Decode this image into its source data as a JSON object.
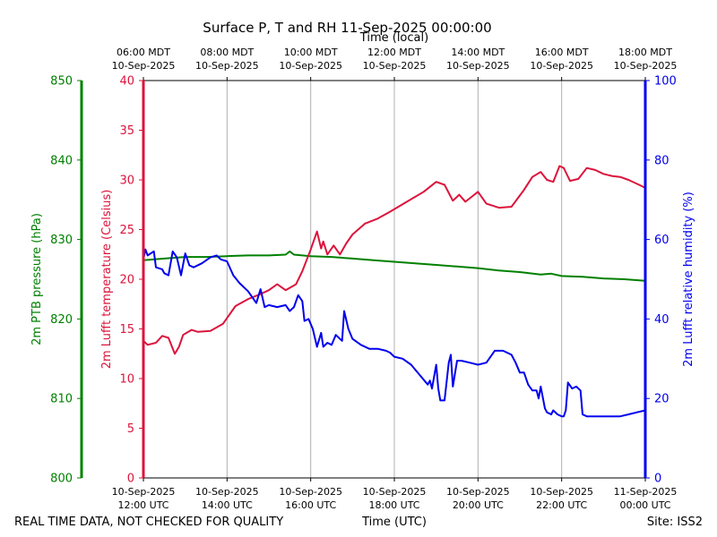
{
  "footer": {
    "quality_note": "REAL TIME DATA, NOT CHECKED FOR QUALITY",
    "site": "Site: ISS2"
  },
  "colors": {
    "pressure": "#008000",
    "temperature": "#dc143c",
    "humidity": "#0000ee",
    "grid": "#b0b0b0"
  },
  "chart_data": {
    "type": "line",
    "title": "Surface P, T and RH 11-Sep-2025 00:00:00",
    "xlabel": "Time (UTC)",
    "x2label": "Time (local)",
    "xlim": [
      12,
      24
    ],
    "x_unit": "hours UTC, 10-Sep-2025",
    "grid": "vertical",
    "x_ticks": [
      {
        "x": 12,
        "utc": [
          "10-Sep-2025",
          "12:00 UTC"
        ],
        "local": [
          "06:00 MDT",
          "10-Sep-2025"
        ]
      },
      {
        "x": 14,
        "utc": [
          "10-Sep-2025",
          "14:00 UTC"
        ],
        "local": [
          "08:00 MDT",
          "10-Sep-2025"
        ]
      },
      {
        "x": 16,
        "utc": [
          "10-Sep-2025",
          "16:00 UTC"
        ],
        "local": [
          "10:00 MDT",
          "10-Sep-2025"
        ]
      },
      {
        "x": 18,
        "utc": [
          "10-Sep-2025",
          "18:00 UTC"
        ],
        "local": [
          "12:00 MDT",
          "10-Sep-2025"
        ]
      },
      {
        "x": 20,
        "utc": [
          "10-Sep-2025",
          "20:00 UTC"
        ],
        "local": [
          "14:00 MDT",
          "10-Sep-2025"
        ]
      },
      {
        "x": 22,
        "utc": [
          "10-Sep-2025",
          "22:00 UTC"
        ],
        "local": [
          "16:00 MDT",
          "10-Sep-2025"
        ]
      },
      {
        "x": 24,
        "utc": [
          "11-Sep-2025",
          "00:00 UTC"
        ],
        "local": [
          "18:00 MDT",
          "10-Sep-2025"
        ]
      }
    ],
    "axes": {
      "pressure": {
        "label": "2m PTB pressure (hPa)",
        "ylim": [
          800,
          850
        ],
        "ticks": [
          800,
          810,
          820,
          830,
          840,
          850
        ]
      },
      "temperature": {
        "label": "2m Lufft temperature (Celsius)",
        "ylim": [
          0,
          40
        ],
        "ticks": [
          0,
          5,
          10,
          15,
          20,
          25,
          30,
          35,
          40
        ]
      },
      "humidity": {
        "label": "2m Lufft relative humidity (%)",
        "ylim": [
          0,
          100
        ],
        "ticks": [
          0,
          20,
          40,
          60,
          80,
          100
        ]
      }
    },
    "series": [
      {
        "key": "pressure",
        "x": [
          12.0,
          12.5,
          13.0,
          13.5,
          14.0,
          14.5,
          15.0,
          15.4,
          15.5,
          15.6,
          16.0,
          16.5,
          17.0,
          17.5,
          18.0,
          18.5,
          19.0,
          19.5,
          20.0,
          20.5,
          21.0,
          21.5,
          21.75,
          22.0,
          22.5,
          23.0,
          23.5,
          24.0
        ],
        "y": [
          827.4,
          827.6,
          827.8,
          827.8,
          827.9,
          828.0,
          828.0,
          828.1,
          828.5,
          828.1,
          827.9,
          827.8,
          827.6,
          827.4,
          827.2,
          827.0,
          826.8,
          826.6,
          826.4,
          826.1,
          825.9,
          825.6,
          825.7,
          825.4,
          825.3,
          825.1,
          825.0,
          824.8
        ]
      },
      {
        "key": "temperature",
        "x": [
          12.0,
          12.1,
          12.3,
          12.45,
          12.6,
          12.75,
          12.85,
          12.95,
          13.15,
          13.3,
          13.6,
          13.9,
          14.2,
          14.5,
          14.8,
          15.0,
          15.2,
          15.4,
          15.65,
          15.8,
          16.0,
          16.15,
          16.25,
          16.3,
          16.4,
          16.55,
          16.7,
          16.85,
          17.0,
          17.3,
          17.6,
          17.9,
          18.3,
          18.7,
          19.0,
          19.2,
          19.4,
          19.55,
          19.7,
          19.85,
          20.0,
          20.2,
          20.5,
          20.8,
          21.1,
          21.3,
          21.5,
          21.65,
          21.8,
          21.95,
          22.05,
          22.2,
          22.4,
          22.6,
          22.8,
          23.0,
          23.2,
          23.4,
          23.6,
          23.8,
          24.0
        ],
        "y": [
          13.8,
          13.4,
          13.6,
          14.3,
          14.1,
          12.5,
          13.2,
          14.4,
          14.9,
          14.7,
          14.8,
          15.5,
          17.3,
          18.0,
          18.5,
          18.9,
          19.5,
          18.9,
          19.5,
          20.8,
          23.0,
          24.8,
          23.1,
          23.8,
          22.5,
          23.4,
          22.5,
          23.6,
          24.5,
          25.6,
          26.1,
          26.8,
          27.8,
          28.8,
          29.8,
          29.5,
          27.9,
          28.5,
          27.8,
          28.3,
          28.8,
          27.6,
          27.2,
          27.3,
          29.0,
          30.3,
          30.8,
          30.0,
          29.8,
          31.4,
          31.2,
          29.9,
          30.1,
          31.2,
          31.0,
          30.6,
          30.4,
          30.3,
          30.0,
          29.6,
          29.2
        ]
      },
      {
        "key": "humidity",
        "x": [
          12.0,
          12.05,
          12.1,
          12.25,
          12.3,
          12.45,
          12.5,
          12.6,
          12.7,
          12.8,
          12.9,
          13.0,
          13.1,
          13.2,
          13.4,
          13.6,
          13.75,
          13.85,
          14.0,
          14.15,
          14.3,
          14.5,
          14.7,
          14.8,
          14.9,
          15.0,
          15.2,
          15.4,
          15.5,
          15.6,
          15.7,
          15.8,
          15.85,
          15.95,
          16.05,
          16.15,
          16.25,
          16.3,
          16.4,
          16.5,
          16.6,
          16.7,
          16.75,
          16.8,
          16.9,
          17.0,
          17.2,
          17.4,
          17.6,
          17.8,
          17.9,
          18.0,
          18.2,
          18.4,
          18.6,
          18.8,
          18.85,
          18.9,
          19.0,
          19.05,
          19.1,
          19.2,
          19.3,
          19.35,
          19.4,
          19.5,
          19.6,
          19.8,
          20.0,
          20.2,
          20.4,
          20.6,
          20.8,
          20.9,
          21.0,
          21.1,
          21.2,
          21.3,
          21.4,
          21.45,
          21.5,
          21.6,
          21.65,
          21.75,
          21.8,
          21.9,
          22.0,
          22.05,
          22.1,
          22.15,
          22.25,
          22.35,
          22.45,
          22.5,
          22.6,
          22.8,
          23.0,
          23.2,
          23.4,
          23.6,
          23.8,
          24.0
        ],
        "y": [
          55.0,
          57.5,
          56.0,
          57.0,
          53.0,
          52.5,
          51.5,
          51.0,
          57.0,
          55.5,
          51.0,
          56.5,
          53.5,
          53.0,
          54.0,
          55.5,
          56.0,
          55.0,
          54.5,
          51.0,
          49.0,
          47.0,
          44.0,
          47.5,
          43.0,
          43.5,
          43.0,
          43.5,
          42.0,
          43.0,
          46.0,
          44.5,
          39.5,
          40.0,
          37.5,
          33.0,
          36.5,
          33.0,
          34.0,
          33.5,
          36.0,
          35.0,
          34.5,
          42.0,
          37.5,
          35.0,
          33.5,
          32.5,
          32.5,
          32.0,
          31.5,
          30.5,
          30.0,
          28.5,
          26.0,
          23.5,
          24.5,
          22.5,
          28.5,
          22.5,
          19.5,
          19.5,
          29.0,
          31.0,
          23.0,
          29.5,
          29.5,
          29.0,
          28.5,
          29.0,
          32.0,
          32.0,
          31.0,
          29.0,
          26.5,
          26.5,
          23.5,
          22.0,
          22.0,
          20.0,
          23.0,
          17.5,
          16.5,
          16.0,
          17.0,
          16.0,
          15.5,
          15.5,
          17.0,
          24.0,
          22.5,
          23.0,
          22.0,
          16.0,
          15.5,
          15.5,
          15.5,
          15.5,
          15.5,
          16.0,
          16.5,
          17.0
        ]
      }
    ]
  }
}
